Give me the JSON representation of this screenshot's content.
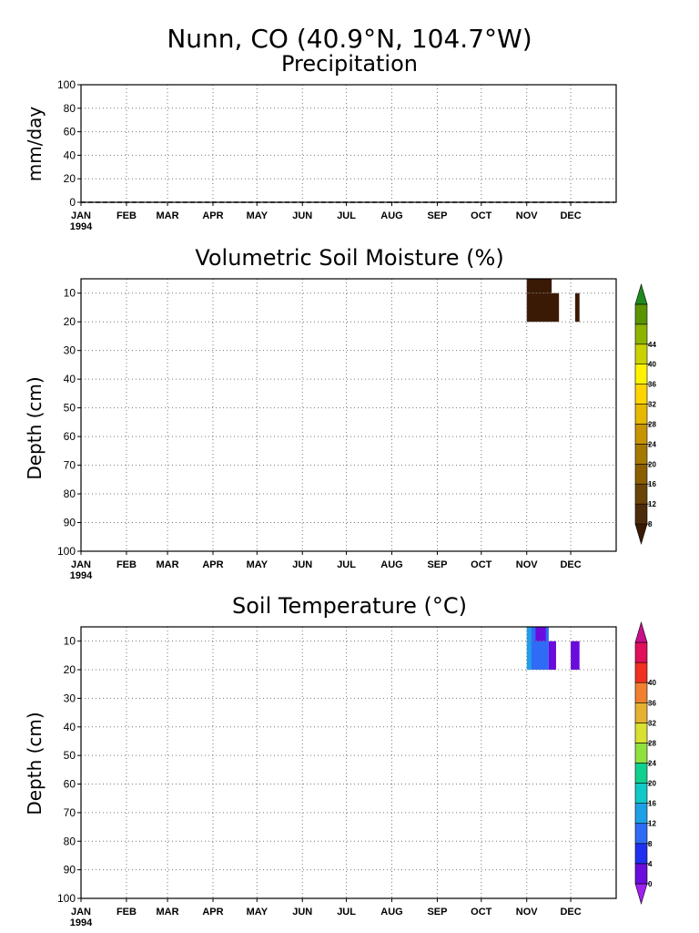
{
  "figure": {
    "location_title": "Nunn, CO   (40.9°N, 104.7°W)",
    "year_label": "1994"
  },
  "chart_data": [
    {
      "id": "precip",
      "type": "line",
      "title": "Precipitation",
      "xlabel": "",
      "ylabel": "mm/day",
      "ylim": [
        0,
        100
      ],
      "yticks": [
        0,
        20,
        40,
        60,
        80,
        100
      ],
      "x_categories": [
        "JAN",
        "FEB",
        "MAR",
        "APR",
        "MAY",
        "JUN",
        "JUL",
        "AUG",
        "SEP",
        "OCT",
        "NOV",
        "DEC"
      ],
      "grid": true,
      "series": [
        {
          "x": [
            1,
            365
          ],
          "y": [
            0,
            0
          ]
        }
      ]
    },
    {
      "id": "soil_moisture",
      "type": "heatmap",
      "title": "Volumetric Soil Moisture (%)",
      "xlabel": "",
      "ylabel": "Depth (cm)",
      "ylim": [
        100,
        5
      ],
      "yticks": [
        10,
        20,
        30,
        40,
        50,
        60,
        70,
        80,
        90,
        100
      ],
      "x_categories": [
        "JAN",
        "FEB",
        "MAR",
        "APR",
        "MAY",
        "JUN",
        "JUL",
        "AUG",
        "SEP",
        "OCT",
        "NOV",
        "DEC"
      ],
      "grid": true,
      "colorbar": {
        "labels": [
          "8",
          "12",
          "16",
          "20",
          "24",
          "28",
          "32",
          "36",
          "40",
          "44"
        ],
        "colors": [
          "#3a1a05",
          "#4d2c0c",
          "#6b4409",
          "#8a5f00",
          "#a57800",
          "#c69400",
          "#e6b800",
          "#ffd400",
          "#fff200",
          "#c9d200",
          "#8fb400",
          "#5a9400",
          "#1e8a1e"
        ]
      },
      "cells": [
        {
          "day_start": 305,
          "day_end": 322,
          "depth_top": 5,
          "depth_bottom": 10,
          "color": "#3a1a05"
        },
        {
          "day_start": 305,
          "day_end": 327,
          "depth_top": 10,
          "depth_bottom": 20,
          "color": "#3a1a05"
        },
        {
          "day_start": 338,
          "day_end": 341,
          "depth_top": 10,
          "depth_bottom": 20,
          "color": "#3a1a05"
        }
      ]
    },
    {
      "id": "soil_temp",
      "type": "heatmap",
      "title": "Soil Temperature (°C)",
      "xlabel": "",
      "ylabel": "Depth (cm)",
      "ylim": [
        100,
        5
      ],
      "yticks": [
        10,
        20,
        30,
        40,
        50,
        60,
        70,
        80,
        90,
        100
      ],
      "x_categories": [
        "JAN",
        "FEB",
        "MAR",
        "APR",
        "MAY",
        "JUN",
        "JUL",
        "AUG",
        "SEP",
        "OCT",
        "NOV",
        "DEC"
      ],
      "grid": true,
      "colorbar": {
        "labels": [
          "0",
          "4",
          "8",
          "12",
          "16",
          "20",
          "24",
          "28",
          "32",
          "36",
          "40"
        ],
        "colors": [
          "#a020f0",
          "#6a0cdc",
          "#2030f0",
          "#2f6bf5",
          "#1ea0e6",
          "#10c8c8",
          "#10d090",
          "#90e040",
          "#d8e030",
          "#e6b030",
          "#f08030",
          "#f03020",
          "#e0105a",
          "#c8108c"
        ]
      },
      "cells": [
        {
          "day_start": 305,
          "day_end": 308,
          "depth_top": 5,
          "depth_bottom": 20,
          "color": "#1ea0e6"
        },
        {
          "day_start": 308,
          "day_end": 320,
          "depth_top": 5,
          "depth_bottom": 20,
          "color": "#2f6bf5"
        },
        {
          "day_start": 311,
          "day_end": 318,
          "depth_top": 5,
          "depth_bottom": 10,
          "color": "#6a0cdc"
        },
        {
          "day_start": 320,
          "day_end": 325,
          "depth_top": 10,
          "depth_bottom": 20,
          "color": "#6a0cdc"
        },
        {
          "day_start": 335,
          "day_end": 341,
          "depth_top": 10,
          "depth_bottom": 20,
          "color": "#6a0cdc"
        }
      ]
    }
  ]
}
